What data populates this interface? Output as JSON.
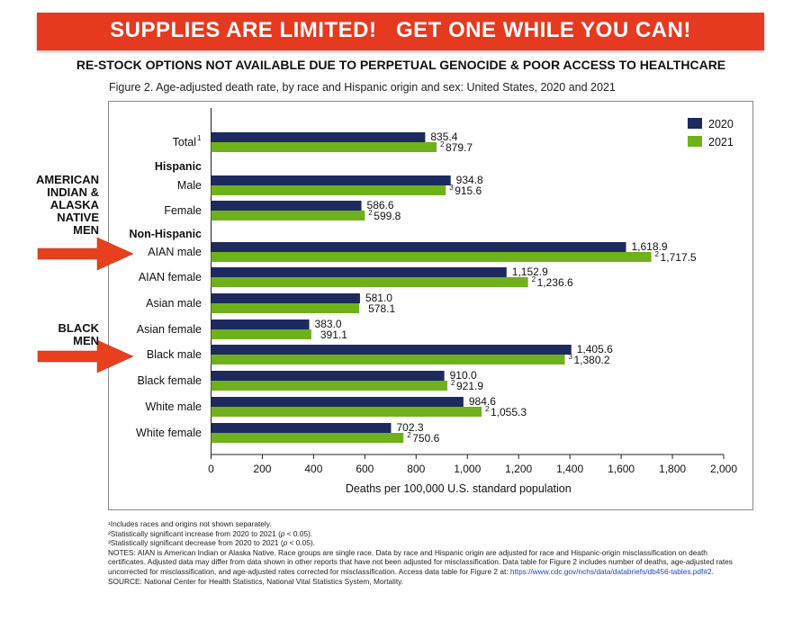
{
  "banner": {
    "text": "SUPPLIES ARE LIMITED!   GET ONE WHILE YOU CAN!"
  },
  "subhead": "RE-STOCK OPTIONS NOT AVAILABLE DUE TO PERPETUAL GENOCIDE & POOR ACCESS TO HEALTHCARE",
  "annotations": {
    "aian": [
      "AMERICAN",
      "INDIAN &",
      "ALASKA",
      "NATIVE",
      "MEN"
    ],
    "black": [
      "BLACK",
      "MEN"
    ],
    "arrow_color": "#e8401e"
  },
  "chart_data": {
    "type": "bar",
    "orientation": "horizontal",
    "title": "Figure 2. Age-adjusted death rate, by race and Hispanic origin and sex: United States, 2020 and 2021",
    "xlabel": "Deaths per 100,000 U.S. standard population",
    "xlim": [
      0,
      2000
    ],
    "xticks": [
      "0",
      "200",
      "400",
      "600",
      "800",
      "1,000",
      "1,200",
      "1,400",
      "1,600",
      "1,800",
      "2,000"
    ],
    "group_headers": [
      "Hispanic",
      "Non-Hispanic"
    ],
    "categories": [
      "Total",
      "Male",
      "Female",
      "AIAN male",
      "AIAN female",
      "Asian male",
      "Asian female",
      "Black male",
      "Black female",
      "White male",
      "White female"
    ],
    "category_superscripts": [
      "1",
      "",
      "",
      "",
      "",
      "",
      "",
      "",
      "",
      "",
      ""
    ],
    "legend_position": "top-right",
    "series": [
      {
        "name": "2020",
        "color": "#1c2a5e",
        "values": [
          835.4,
          934.8,
          586.6,
          1618.9,
          1152.9,
          581.0,
          383.0,
          1405.6,
          910.0,
          984.6,
          702.3
        ],
        "labels": [
          "835.4",
          "934.8",
          "586.6",
          "1,618.9",
          "1,152.9",
          "581.0",
          "383.0",
          "1,405.6",
          "910.0",
          "984.6",
          "702.3"
        ],
        "label_superscripts": [
          "",
          "",
          "",
          "",
          "",
          "",
          "",
          "",
          "",
          "",
          ""
        ]
      },
      {
        "name": "2021",
        "color": "#6fb11a",
        "values": [
          879.7,
          915.6,
          599.8,
          1717.5,
          1236.6,
          578.1,
          391.1,
          1380.2,
          921.9,
          1055.3,
          750.6
        ],
        "labels": [
          "879.7",
          "915.6",
          "599.8",
          "1,717.5",
          "1,236.6",
          "578.1",
          "391.1",
          "1,380.2",
          "921.9",
          "1,055.3",
          "750.6"
        ],
        "label_superscripts": [
          "2",
          "3",
          "2",
          "2",
          "2",
          "",
          "",
          "3",
          "2",
          "2",
          "2"
        ]
      }
    ]
  },
  "footnotes": {
    "f1": "¹Includes races and origins not shown separately.",
    "f2_a": "²Statistically significant increase from 2020 to 2021 (",
    "f2_p": "p",
    "f2_b": " < 0.05).",
    "f3_a": "³Statistically significant decrease from 2020 to 2021 (",
    "f3_p": "p",
    "f3_b": " < 0.05).",
    "notes": "NOTES: AIAN is American Indian or Alaska Native. Race groups are single race. Data by race and Hispanic origin are adjusted for race and Hispanic-origin misclassification on death certificates. Adjusted data may differ from data shown in other reports that have not been adjusted for misclassification. Data table for Figure 2 includes number of deaths, age-adjusted rates uncorrected for misclassification, and age-adjusted rates corrected for misclassification. Access data table for Figure 2 at: ",
    "link": "https://www.cdc.gov/nchs/data/databriefs/db456-tables.pdf#2",
    "link_suffix": ".",
    "source": "SOURCE: National Center for Health Statistics, National Vital Statistics System, Mortality."
  }
}
